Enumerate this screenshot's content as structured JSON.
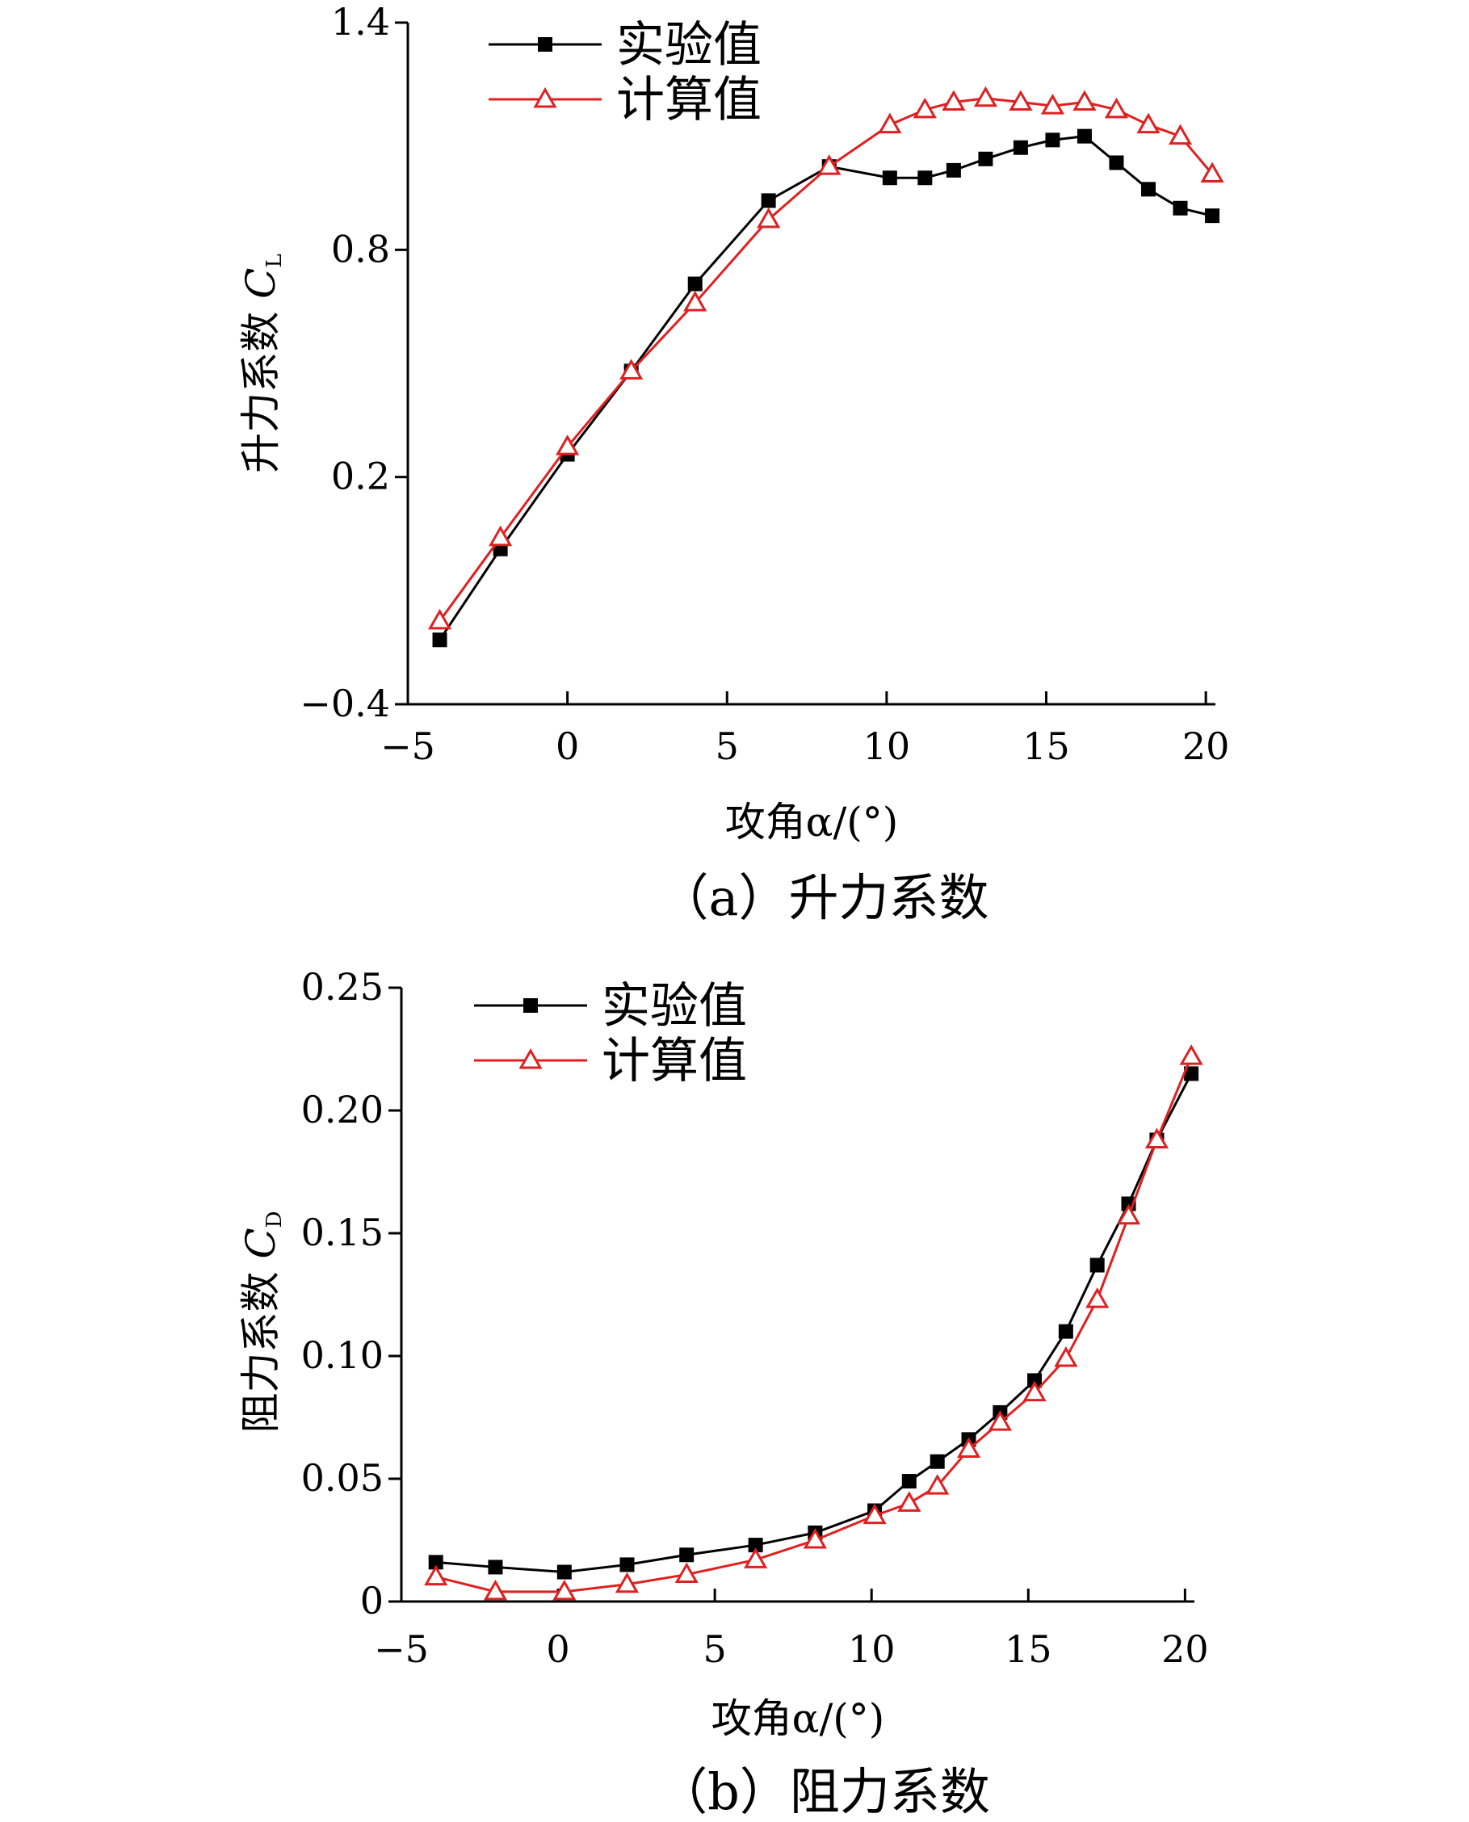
{
  "chart_data": [
    {
      "type": "line",
      "caption": "（a）升力系数",
      "xlabel": "攻角α/(°)",
      "ylabel": "升力系数",
      "ylabel_symbol": "C",
      "ylabel_sub": "L",
      "xlim": [
        -5,
        20.3
      ],
      "ylim": [
        -0.4,
        1.4
      ],
      "xticks": [
        -5,
        0,
        5,
        10,
        15,
        20
      ],
      "yticks": [
        -0.4,
        0.2,
        0.8,
        1.4
      ],
      "xtick_labels": [
        "−5",
        "0",
        "5",
        "10",
        "15",
        "20"
      ],
      "ytick_labels": [
        "−0.4",
        "0.2",
        "0.8",
        "1.4"
      ],
      "legend_position": "top-left",
      "series": [
        {
          "name": "实验值",
          "color": "#000000",
          "marker": "square",
          "x": [
            -4,
            -2.1,
            0,
            2,
            4,
            6.3,
            8.2,
            10.1,
            11.2,
            12.1,
            13.1,
            14.2,
            15.2,
            16.2,
            17.2,
            18.2,
            19.2,
            20.2
          ],
          "y": [
            -0.23,
            0.01,
            0.26,
            0.48,
            0.71,
            0.93,
            1.02,
            0.99,
            0.99,
            1.01,
            1.04,
            1.07,
            1.09,
            1.1,
            1.03,
            0.96,
            0.91,
            0.89
          ]
        },
        {
          "name": "计算值",
          "color": "#e02020",
          "marker": "triangle",
          "x": [
            -4,
            -2.1,
            0,
            2,
            4,
            6.3,
            8.2,
            10.1,
            11.2,
            12.1,
            13.1,
            14.2,
            15.2,
            16.2,
            17.2,
            18.2,
            19.2,
            20.2
          ],
          "y": [
            -0.18,
            0.04,
            0.28,
            0.48,
            0.66,
            0.88,
            1.02,
            1.13,
            1.17,
            1.19,
            1.2,
            1.19,
            1.18,
            1.19,
            1.17,
            1.13,
            1.1,
            1.0
          ]
        }
      ]
    },
    {
      "type": "line",
      "caption": "（b）阻力系数",
      "xlabel": "攻角α/(°)",
      "ylabel": "阻力系数",
      "ylabel_symbol": "C",
      "ylabel_sub": "D",
      "xlim": [
        -5,
        20.3
      ],
      "ylim": [
        0,
        0.25
      ],
      "xticks": [
        -5,
        0,
        5,
        10,
        15,
        20
      ],
      "yticks": [
        0,
        0.05,
        0.1,
        0.15,
        0.2,
        0.25
      ],
      "xtick_labels": [
        "−5",
        "0",
        "5",
        "10",
        "15",
        "20"
      ],
      "ytick_labels": [
        "0",
        "0.05",
        "0.10",
        "0.15",
        "0.20",
        "0.25"
      ],
      "legend_position": "top-left",
      "series": [
        {
          "name": "实验值",
          "color": "#000000",
          "marker": "square",
          "x": [
            -3.9,
            -2,
            0.2,
            2.2,
            4.1,
            6.3,
            8.2,
            10.1,
            11.2,
            12.1,
            13.1,
            14.1,
            15.2,
            16.2,
            17.2,
            18.2,
            19.1,
            20.2
          ],
          "y": [
            0.016,
            0.014,
            0.012,
            0.015,
            0.019,
            0.023,
            0.028,
            0.037,
            0.049,
            0.057,
            0.066,
            0.077,
            0.09,
            0.11,
            0.137,
            0.162,
            0.188,
            0.215
          ],
          "label": ""
        },
        {
          "name": "计算值",
          "color": "#e02020",
          "marker": "triangle",
          "x": [
            -3.9,
            -2,
            0.2,
            2.2,
            4.1,
            6.3,
            8.2,
            10.1,
            11.2,
            12.1,
            13.1,
            14.1,
            15.2,
            16.2,
            17.2,
            18.2,
            19.1,
            20.2
          ],
          "y": [
            0.01,
            0.004,
            0.004,
            0.007,
            0.011,
            0.017,
            0.025,
            0.035,
            0.04,
            0.047,
            0.062,
            0.073,
            0.085,
            0.099,
            0.123,
            0.157,
            0.188,
            0.222
          ]
        }
      ]
    }
  ]
}
